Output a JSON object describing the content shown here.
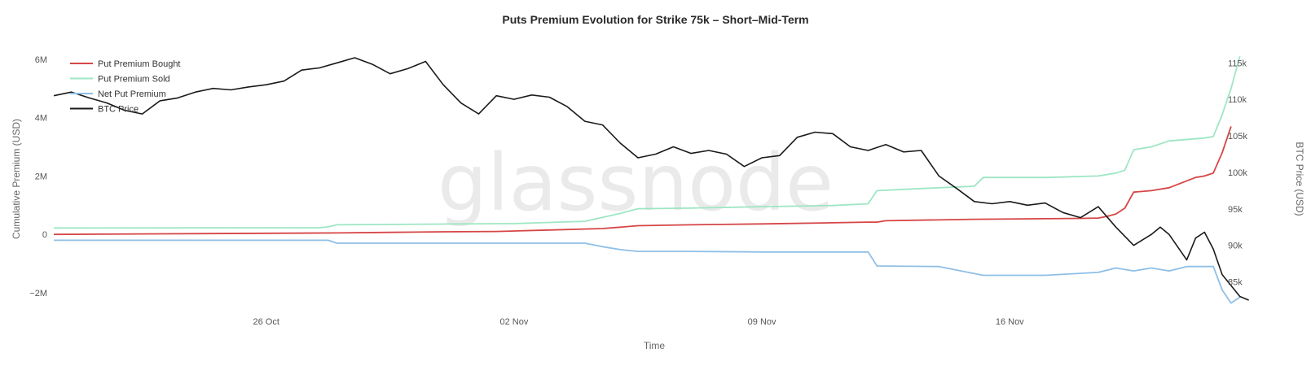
{
  "title": "Puts Premium Evolution for Strike 75k – Short–Mid-Term",
  "watermark": "glassnode",
  "colors": {
    "bought": "#d64545",
    "sold": "#9ee6c4",
    "net": "#8fbfe6",
    "btc": "#1a1a1a"
  },
  "chart_data": {
    "type": "line",
    "title": "Puts Premium Evolution for Strike 75k – Short–Mid-Term",
    "xlabel": "Time",
    "ylabel_left": "Cumulative Premium (USD)",
    "ylabel_right": "BTC Price (USD)",
    "x_range": [
      "2025-10-20",
      "2025-11-22"
    ],
    "x_ticks": [
      {
        "date": "2025-10-26",
        "label": "26 Oct"
      },
      {
        "date": "2025-11-02",
        "label": "02 Nov"
      },
      {
        "date": "2025-11-09",
        "label": "09 Nov"
      },
      {
        "date": "2025-11-16",
        "label": "16 Nov"
      }
    ],
    "ylim_left": [
      -2500000,
      6300000
    ],
    "y_ticks_left": [
      {
        "value": 6000000,
        "label": "6M"
      },
      {
        "value": 4000000,
        "label": "4M"
      },
      {
        "value": 2000000,
        "label": "2M"
      },
      {
        "value": 0,
        "label": "0"
      },
      {
        "value": -2000000,
        "label": "−2M"
      }
    ],
    "ylim_right": [
      81500,
      116700
    ],
    "y_ticks_right": [
      {
        "value": 115000,
        "label": "115k"
      },
      {
        "value": 110000,
        "label": "110k"
      },
      {
        "value": 105000,
        "label": "105k"
      },
      {
        "value": 100000,
        "label": "100k"
      },
      {
        "value": 95000,
        "label": "95k"
      },
      {
        "value": 90000,
        "label": "90k"
      },
      {
        "value": 85000,
        "label": "85k"
      }
    ],
    "legend_position": "top-left",
    "grid": false,
    "series": [
      {
        "name": "Put Premium Bought",
        "axis": "left",
        "points": [
          [
            "2025-10-20T00:00",
            0
          ],
          [
            "2025-10-23T00:00",
            20000
          ],
          [
            "2025-10-28T00:00",
            50000
          ],
          [
            "2025-10-29T12:00",
            70000
          ],
          [
            "2025-10-31T00:00",
            90000
          ],
          [
            "2025-11-01T12:00",
            100000
          ],
          [
            "2025-11-03T00:00",
            150000
          ],
          [
            "2025-11-04T12:00",
            200000
          ],
          [
            "2025-11-05T00:00",
            250000
          ],
          [
            "2025-11-05T12:00",
            300000
          ],
          [
            "2025-11-07T00:00",
            330000
          ],
          [
            "2025-11-09T00:00",
            360000
          ],
          [
            "2025-11-11T00:00",
            400000
          ],
          [
            "2025-11-12T00:00",
            420000
          ],
          [
            "2025-11-12T06:00",
            420000
          ],
          [
            "2025-11-12T12:00",
            470000
          ],
          [
            "2025-11-15T00:00",
            520000
          ],
          [
            "2025-11-18T00:00",
            550000
          ],
          [
            "2025-11-18T12:00",
            560000
          ],
          [
            "2025-11-18T18:00",
            620000
          ],
          [
            "2025-11-19T00:00",
            700000
          ],
          [
            "2025-11-19T06:00",
            900000
          ],
          [
            "2025-11-19T12:00",
            1450000
          ],
          [
            "2025-11-20T00:00",
            1500000
          ],
          [
            "2025-11-20T12:00",
            1600000
          ],
          [
            "2025-11-21T06:00",
            1950000
          ],
          [
            "2025-11-21T12:00",
            2000000
          ],
          [
            "2025-11-21T18:00",
            2100000
          ],
          [
            "2025-11-22T00:00",
            2800000
          ],
          [
            "2025-11-22T06:00",
            3700000
          ]
        ]
      },
      {
        "name": "Put Premium Sold",
        "axis": "left",
        "points": [
          [
            "2025-10-20T00:00",
            220000
          ],
          [
            "2025-10-27T12:00",
            230000
          ],
          [
            "2025-10-27T18:00",
            260000
          ],
          [
            "2025-10-28T00:00",
            330000
          ],
          [
            "2025-11-02T00:00",
            370000
          ],
          [
            "2025-11-04T00:00",
            450000
          ],
          [
            "2025-11-05T00:00",
            720000
          ],
          [
            "2025-11-05T12:00",
            880000
          ],
          [
            "2025-11-07T00:00",
            900000
          ],
          [
            "2025-11-09T00:00",
            950000
          ],
          [
            "2025-11-11T00:00",
            990000
          ],
          [
            "2025-11-12T00:00",
            1050000
          ],
          [
            "2025-11-12T06:00",
            1500000
          ],
          [
            "2025-11-14T00:00",
            1600000
          ],
          [
            "2025-11-15T00:00",
            1650000
          ],
          [
            "2025-11-15T06:00",
            1950000
          ],
          [
            "2025-11-17T00:00",
            1950000
          ],
          [
            "2025-11-18T12:00",
            2000000
          ],
          [
            "2025-11-19T00:00",
            2100000
          ],
          [
            "2025-11-19T06:00",
            2200000
          ],
          [
            "2025-11-19T12:00",
            2900000
          ],
          [
            "2025-11-20T00:00",
            3000000
          ],
          [
            "2025-11-20T12:00",
            3200000
          ],
          [
            "2025-11-21T12:00",
            3300000
          ],
          [
            "2025-11-21T18:00",
            3350000
          ],
          [
            "2025-11-22T00:00",
            4100000
          ],
          [
            "2025-11-22T06:00",
            5000000
          ],
          [
            "2025-11-22T12:00",
            6100000
          ]
        ]
      },
      {
        "name": "Net Put Premium",
        "axis": "left",
        "points": [
          [
            "2025-10-20T00:00",
            -200000
          ],
          [
            "2025-10-27T18:00",
            -200000
          ],
          [
            "2025-10-28T00:00",
            -300000
          ],
          [
            "2025-11-04T00:00",
            -300000
          ],
          [
            "2025-11-04T12:00",
            -420000
          ],
          [
            "2025-11-05T00:00",
            -520000
          ],
          [
            "2025-11-05T12:00",
            -580000
          ],
          [
            "2025-11-07T00:00",
            -580000
          ],
          [
            "2025-11-09T00:00",
            -600000
          ],
          [
            "2025-11-12T00:00",
            -600000
          ],
          [
            "2025-11-12T06:00",
            -1080000
          ],
          [
            "2025-11-14T00:00",
            -1100000
          ],
          [
            "2025-11-15T06:00",
            -1400000
          ],
          [
            "2025-11-17T00:00",
            -1400000
          ],
          [
            "2025-11-18T12:00",
            -1300000
          ],
          [
            "2025-11-19T00:00",
            -1150000
          ],
          [
            "2025-11-19T12:00",
            -1250000
          ],
          [
            "2025-11-20T00:00",
            -1150000
          ],
          [
            "2025-11-20T12:00",
            -1250000
          ],
          [
            "2025-11-21T00:00",
            -1100000
          ],
          [
            "2025-11-21T18:00",
            -1100000
          ],
          [
            "2025-11-22T00:00",
            -1900000
          ],
          [
            "2025-11-22T06:00",
            -2350000
          ],
          [
            "2025-11-22T12:00",
            -2150000
          ]
        ]
      },
      {
        "name": "BTC Price",
        "axis": "right",
        "points": [
          [
            "2025-10-20T00:00",
            110500
          ],
          [
            "2025-10-20T12:00",
            111000
          ],
          [
            "2025-10-21T00:00",
            110200
          ],
          [
            "2025-10-21T12:00",
            109500
          ],
          [
            "2025-10-22T00:00",
            108500
          ],
          [
            "2025-10-22T12:00",
            108000
          ],
          [
            "2025-10-23T00:00",
            109800
          ],
          [
            "2025-10-23T12:00",
            110200
          ],
          [
            "2025-10-24T00:00",
            111000
          ],
          [
            "2025-10-24T12:00",
            111500
          ],
          [
            "2025-10-25T00:00",
            111300
          ],
          [
            "2025-10-25T12:00",
            111700
          ],
          [
            "2025-10-26T00:00",
            112000
          ],
          [
            "2025-10-26T12:00",
            112500
          ],
          [
            "2025-10-27T00:00",
            114000
          ],
          [
            "2025-10-27T12:00",
            114300
          ],
          [
            "2025-10-28T00:00",
            115000
          ],
          [
            "2025-10-28T12:00",
            115700
          ],
          [
            "2025-10-29T00:00",
            114800
          ],
          [
            "2025-10-29T12:00",
            113500
          ],
          [
            "2025-10-30T00:00",
            114200
          ],
          [
            "2025-10-30T12:00",
            115200
          ],
          [
            "2025-10-31T00:00",
            112000
          ],
          [
            "2025-10-31T12:00",
            109500
          ],
          [
            "2025-11-01T00:00",
            108000
          ],
          [
            "2025-11-01T12:00",
            110500
          ],
          [
            "2025-11-02T00:00",
            110000
          ],
          [
            "2025-11-02T12:00",
            110600
          ],
          [
            "2025-11-03T00:00",
            110300
          ],
          [
            "2025-11-03T12:00",
            109000
          ],
          [
            "2025-11-04T00:00",
            107000
          ],
          [
            "2025-11-04T12:00",
            106500
          ],
          [
            "2025-11-05T00:00",
            104000
          ],
          [
            "2025-11-05T12:00",
            102000
          ],
          [
            "2025-11-06T00:00",
            102500
          ],
          [
            "2025-11-06T12:00",
            103500
          ],
          [
            "2025-11-07T00:00",
            102600
          ],
          [
            "2025-11-07T12:00",
            103000
          ],
          [
            "2025-11-08T00:00",
            102500
          ],
          [
            "2025-11-08T12:00",
            100800
          ],
          [
            "2025-11-09T00:00",
            102000
          ],
          [
            "2025-11-09T12:00",
            102300
          ],
          [
            "2025-11-10T00:00",
            104800
          ],
          [
            "2025-11-10T12:00",
            105500
          ],
          [
            "2025-11-11T00:00",
            105300
          ],
          [
            "2025-11-11T12:00",
            103500
          ],
          [
            "2025-11-12T00:00",
            103000
          ],
          [
            "2025-11-12T12:00",
            103800
          ],
          [
            "2025-11-13T00:00",
            102800
          ],
          [
            "2025-11-13T12:00",
            103000
          ],
          [
            "2025-11-14T00:00",
            99500
          ],
          [
            "2025-11-14T12:00",
            97800
          ],
          [
            "2025-11-15T00:00",
            96000
          ],
          [
            "2025-11-15T12:00",
            95700
          ],
          [
            "2025-11-16T00:00",
            96000
          ],
          [
            "2025-11-16T12:00",
            95500
          ],
          [
            "2025-11-17T00:00",
            95800
          ],
          [
            "2025-11-17T12:00",
            94500
          ],
          [
            "2025-11-18T00:00",
            93800
          ],
          [
            "2025-11-18T12:00",
            95300
          ],
          [
            "2025-11-19T00:00",
            92500
          ],
          [
            "2025-11-19T12:00",
            90000
          ],
          [
            "2025-11-20T00:00",
            91500
          ],
          [
            "2025-11-20T06:00",
            92500
          ],
          [
            "2025-11-20T12:00",
            91500
          ],
          [
            "2025-11-21T00:00",
            88000
          ],
          [
            "2025-11-21T06:00",
            91000
          ],
          [
            "2025-11-21T12:00",
            91800
          ],
          [
            "2025-11-21T18:00",
            89500
          ],
          [
            "2025-11-22T00:00",
            86000
          ],
          [
            "2025-11-22T06:00",
            84500
          ],
          [
            "2025-11-22T12:00",
            83000
          ],
          [
            "2025-11-22T18:00",
            82500
          ]
        ]
      }
    ]
  }
}
